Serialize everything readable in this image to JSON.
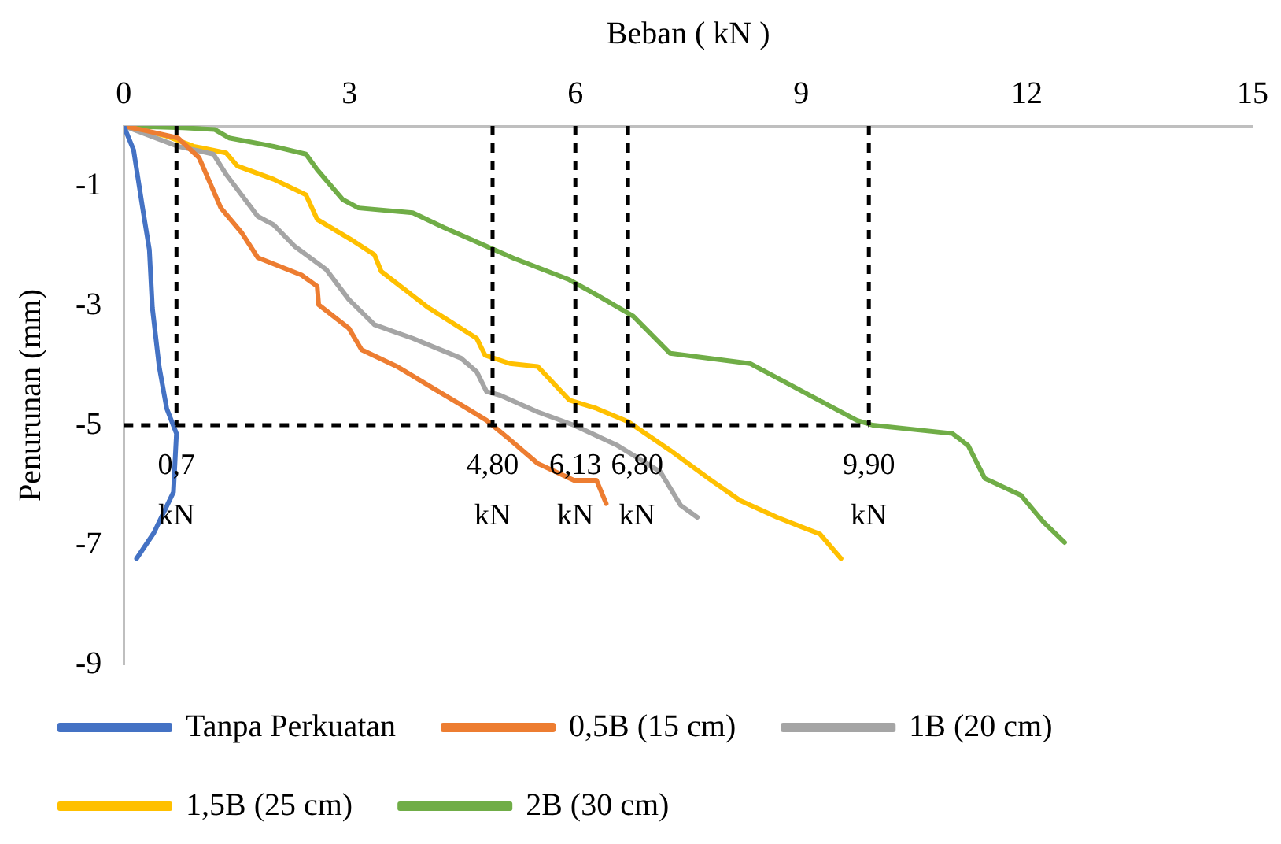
{
  "chart_data": {
    "type": "line",
    "xlabel": "Beban ( kN )",
    "ylabel": "Penurunan (mm)",
    "xlim": [
      0,
      15
    ],
    "xticks": [
      0,
      3,
      6,
      9,
      12,
      15
    ],
    "ylim": [
      -9,
      0
    ],
    "yticks": [
      -1,
      -3,
      -5,
      -7,
      -9
    ],
    "grid": false,
    "legend": "bottom",
    "marker": "none",
    "line_style": "solid",
    "series": [
      {
        "name": "Tanpa Perkuatan",
        "color": "#4472c4",
        "x": [
          0,
          0.13,
          0.25,
          0.34,
          0.38,
          0.47,
          0.57,
          0.7,
          0.66,
          0.4,
          0.17
        ],
        "values": [
          0,
          -0.4,
          -1.37,
          -2.07,
          -3.04,
          -4.02,
          -4.72,
          -5.14,
          -6.12,
          -6.8,
          -7.23
        ]
      },
      {
        "name": "0,5B (15 cm)",
        "color": "#ed7d31",
        "x": [
          0,
          0.3,
          0.72,
          1.0,
          1.29,
          1.57,
          1.78,
          2.36,
          2.57,
          2.59,
          2.99,
          3.16,
          3.63,
          4.12,
          4.48,
          4.82,
          5.11,
          5.5,
          5.98,
          6.28,
          6.41
        ],
        "values": [
          0,
          -0.08,
          -0.2,
          -0.53,
          -1.37,
          -1.79,
          -2.2,
          -2.49,
          -2.68,
          -2.99,
          -3.38,
          -3.74,
          -4.02,
          -4.39,
          -4.66,
          -4.92,
          -5.22,
          -5.64,
          -5.92,
          -5.92,
          -6.31
        ]
      },
      {
        "name": "1B (20 cm)",
        "color": "#a5a5a5",
        "x": [
          0,
          0.72,
          1.19,
          1.36,
          1.78,
          1.99,
          2.27,
          2.69,
          2.99,
          3.33,
          3.84,
          4.48,
          4.69,
          4.82,
          5.0,
          5.5,
          5.98,
          6.56,
          7.13,
          7.4,
          7.62
        ],
        "values": [
          0,
          -0.34,
          -0.47,
          -0.81,
          -1.51,
          -1.65,
          -2.01,
          -2.4,
          -2.9,
          -3.32,
          -3.55,
          -3.88,
          -4.11,
          -4.44,
          -4.5,
          -4.78,
          -5.0,
          -5.34,
          -5.78,
          -6.34,
          -6.54
        ]
      },
      {
        "name": "1,5B (25 cm)",
        "color": "#ffc000",
        "x": [
          0,
          0.57,
          0.93,
          1.36,
          1.51,
          1.99,
          2.42,
          2.57,
          3.06,
          3.33,
          3.42,
          4.05,
          4.69,
          4.8,
          5.13,
          5.5,
          5.92,
          6.28,
          6.7,
          7.26,
          7.77,
          8.19,
          8.68,
          9.25,
          9.53
        ],
        "values": [
          0,
          -0.17,
          -0.34,
          -0.45,
          -0.67,
          -0.89,
          -1.15,
          -1.56,
          -1.93,
          -2.15,
          -2.43,
          -3.04,
          -3.55,
          -3.83,
          -3.97,
          -4.02,
          -4.58,
          -4.72,
          -4.94,
          -5.42,
          -5.89,
          -6.26,
          -6.54,
          -6.82,
          -7.23
        ]
      },
      {
        "name": "2B (30 cm)",
        "color": "#70ad47",
        "x": [
          0,
          0.79,
          1.21,
          1.4,
          1.99,
          2.42,
          2.57,
          2.91,
          3.12,
          3.84,
          4.26,
          5.18,
          5.92,
          6.28,
          6.77,
          7.26,
          8.32,
          8.95,
          9.74,
          9.95,
          11.01,
          11.22,
          11.44,
          11.92,
          12.22,
          12.5
        ],
        "values": [
          0,
          -0.03,
          -0.06,
          -0.2,
          -0.34,
          -0.47,
          -0.73,
          -1.23,
          -1.37,
          -1.45,
          -1.7,
          -2.21,
          -2.57,
          -2.82,
          -3.18,
          -3.8,
          -3.97,
          -4.39,
          -4.92,
          -5.0,
          -5.14,
          -5.34,
          -5.89,
          -6.17,
          -6.62,
          -6.96
        ]
      }
    ],
    "ref_lines": [
      {
        "axis": "x",
        "value": 0.7,
        "label": "0,7 kN",
        "color": "#000000",
        "line_style": "dashed"
      },
      {
        "axis": "x",
        "value": 4.9,
        "label": "4,80 kN",
        "color": "#000000",
        "line_style": "dashed"
      },
      {
        "axis": "x",
        "value": 6.0,
        "label": "6,13 kN",
        "color": "#000000",
        "line_style": "dashed"
      },
      {
        "axis": "x",
        "value": 6.7,
        "label": "6,80 kN",
        "color": "#000000",
        "line_style": "dashed"
      },
      {
        "axis": "x",
        "value": 9.9,
        "label": "9,90 kN",
        "color": "#000000",
        "line_style": "dashed"
      },
      {
        "axis": "y",
        "value": -5,
        "color": "#000000",
        "line_style": "dashed"
      }
    ]
  }
}
